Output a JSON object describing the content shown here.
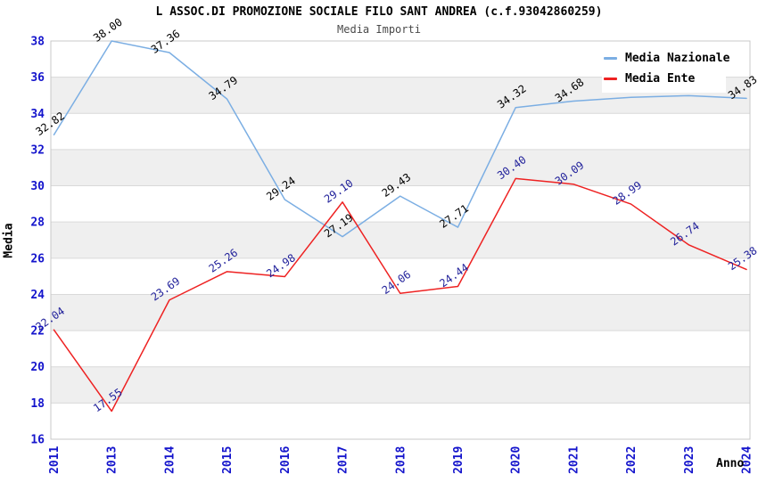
{
  "header": {
    "title": "L ASSOC.DI PROMOZIONE SOCIALE FILO SANT ANDREA (c.f.93042860259)",
    "subtitle": "Media Importi"
  },
  "chart_data": {
    "type": "line",
    "title": "L ASSOC.DI PROMOZIONE SOCIALE FILO SANT ANDREA (c.f.93042860259)",
    "subtitle": "Media Importi",
    "xlabel": "Anno",
    "ylabel": "Media",
    "ylim": [
      16,
      38
    ],
    "yticks": [
      16,
      18,
      20,
      22,
      24,
      26,
      28,
      30,
      32,
      34,
      36,
      38
    ],
    "categories": [
      "2011",
      "2013",
      "2014",
      "2015",
      "2016",
      "2017",
      "2018",
      "2019",
      "2020",
      "2021",
      "2022",
      "2023",
      "2024"
    ],
    "grid": true,
    "band_fill": "#efefef",
    "gridline_color": "#d9d9d9",
    "border_color": "#c9c9c9",
    "tick_label_color": "#1414cc",
    "legend_position": "top-right-inside",
    "series": [
      {
        "name": "Media Nazionale",
        "color": "#7baee3",
        "label_color": "#000000",
        "values": [
          32.82,
          38.0,
          37.36,
          34.79,
          29.24,
          27.19,
          29.43,
          27.71,
          34.32,
          34.68,
          34.89,
          34.98,
          34.83
        ],
        "point_labels": [
          "32.82",
          "38.00",
          "37.36",
          "34.79",
          "29.24",
          "27.19",
          "29.43",
          "27.71",
          "34.32",
          "34.68",
          "",
          "",
          "34.83"
        ],
        "note": "2022 and 2023 point labels are occluded by the legend box; their values are estimated from the line position"
      },
      {
        "name": "Media Ente",
        "color": "#ee2222",
        "label_color": "#22229b",
        "values": [
          22.04,
          17.55,
          23.69,
          25.26,
          24.98,
          29.1,
          24.06,
          24.44,
          30.4,
          30.09,
          28.99,
          26.74,
          25.38
        ],
        "point_labels": [
          "22.04",
          "17.55",
          "23.69",
          "25.26",
          "24.98",
          "29.10",
          "24.06",
          "24.44",
          "30.40",
          "30.09",
          "28.99",
          "26.74",
          "25.38"
        ]
      }
    ]
  }
}
